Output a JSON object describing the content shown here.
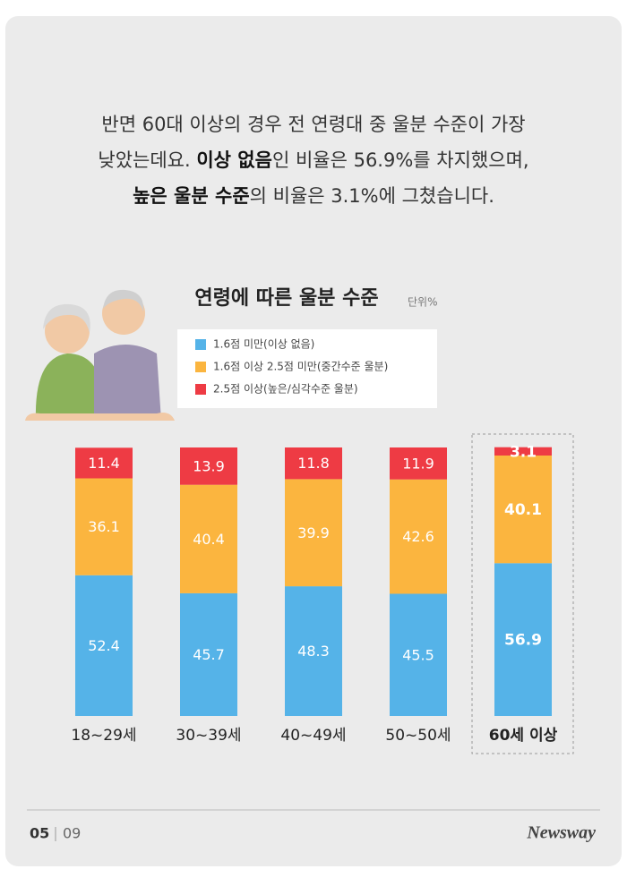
{
  "intro": {
    "line1": "반면 60대 이상의 경우 전 연령대 중 울분 수준이 가장",
    "line2": [
      "낮았는데요. ",
      "이상 없음",
      "인 비율은 56.9%를 차지했으며,"
    ],
    "line3": [
      "높은 울분 수준",
      "의 비율은 3.1%에 그쳤습니다."
    ]
  },
  "chart_data": {
    "type": "stacked_bar",
    "title": "연령에 따른 울분 수준",
    "unit": "단위%",
    "categories": [
      "18~29세",
      "30~39세",
      "40~49세",
      "50~50세",
      "60세 이상"
    ],
    "series": [
      {
        "name": "1.6점 미만(이상 없음)",
        "color": "#55b3e8",
        "values": [
          52.4,
          45.7,
          48.3,
          45.5,
          56.9
        ]
      },
      {
        "name": "1.6점 이상 2.5점 미만(중간수준 울분)",
        "color": "#fbb53f",
        "values": [
          36.1,
          40.4,
          39.9,
          42.6,
          40.1
        ]
      },
      {
        "name": "2.5점 이상(높은/심각수준 울분)",
        "color": "#ee3b44",
        "values": [
          11.4,
          13.9,
          11.8,
          11.9,
          3.1
        ]
      }
    ]
  },
  "footer": {
    "page": "05",
    "total": "09",
    "brand": "Newsway"
  }
}
